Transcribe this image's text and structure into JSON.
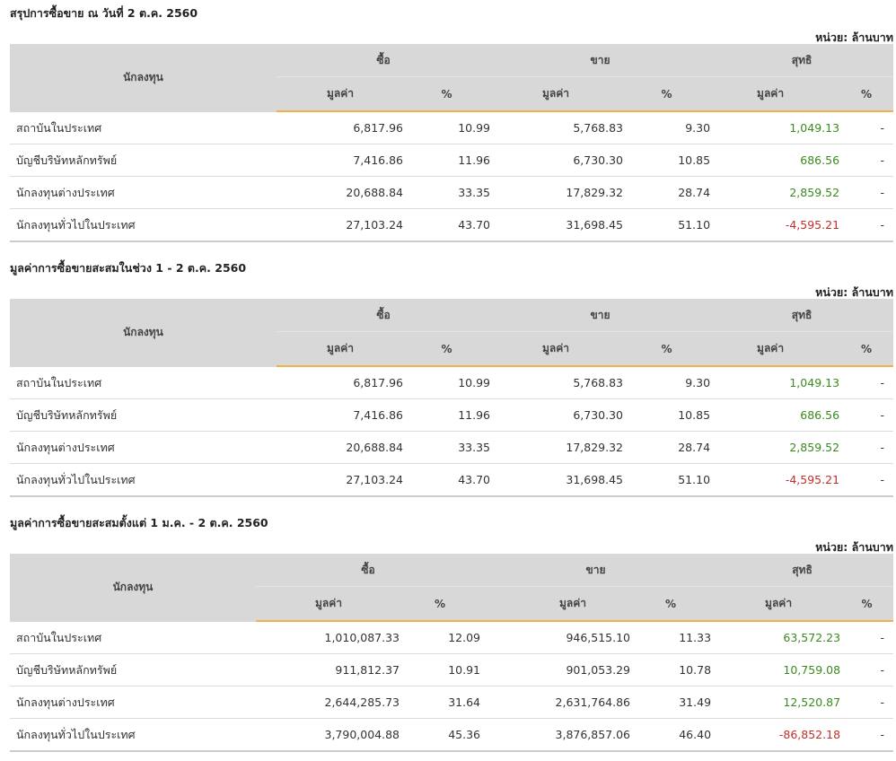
{
  "headers": {
    "investor": "นักลงทุน",
    "buy": "ซื้อ",
    "sell": "ขาย",
    "net": "สุทธิ",
    "value": "มูลค่า",
    "percent": "%"
  },
  "unit_label": "หน่วย: ล้านบาท",
  "sections": [
    {
      "title": "สรุปการซื้อขาย ณ วันที่ 2 ต.ค. 2560",
      "rows": [
        {
          "name": "สถาบันในประเทศ",
          "buy_value": "6,817.96",
          "buy_pct": "10.99",
          "sell_value": "5,768.83",
          "sell_pct": "9.30",
          "net_value": "1,049.13",
          "net_pct": "-"
        },
        {
          "name": "บัญชีบริษัทหลักทรัพย์",
          "buy_value": "7,416.86",
          "buy_pct": "11.96",
          "sell_value": "6,730.30",
          "sell_pct": "10.85",
          "net_value": "686.56",
          "net_pct": "-"
        },
        {
          "name": "นักลงทุนต่างประเทศ",
          "buy_value": "20,688.84",
          "buy_pct": "33.35",
          "sell_value": "17,829.32",
          "sell_pct": "28.74",
          "net_value": "2,859.52",
          "net_pct": "-"
        },
        {
          "name": "นักลงทุนทั่วไปในประเทศ",
          "buy_value": "27,103.24",
          "buy_pct": "43.70",
          "sell_value": "31,698.45",
          "sell_pct": "51.10",
          "net_value": "-4,595.21",
          "net_pct": "-"
        }
      ]
    },
    {
      "title": "มูลค่าการซื้อขายสะสมในช่วง 1 - 2 ต.ค. 2560",
      "rows": [
        {
          "name": "สถาบันในประเทศ",
          "buy_value": "6,817.96",
          "buy_pct": "10.99",
          "sell_value": "5,768.83",
          "sell_pct": "9.30",
          "net_value": "1,049.13",
          "net_pct": "-"
        },
        {
          "name": "บัญชีบริษัทหลักทรัพย์",
          "buy_value": "7,416.86",
          "buy_pct": "11.96",
          "sell_value": "6,730.30",
          "sell_pct": "10.85",
          "net_value": "686.56",
          "net_pct": "-"
        },
        {
          "name": "นักลงทุนต่างประเทศ",
          "buy_value": "20,688.84",
          "buy_pct": "33.35",
          "sell_value": "17,829.32",
          "sell_pct": "28.74",
          "net_value": "2,859.52",
          "net_pct": "-"
        },
        {
          "name": "นักลงทุนทั่วไปในประเทศ",
          "buy_value": "27,103.24",
          "buy_pct": "43.70",
          "sell_value": "31,698.45",
          "sell_pct": "51.10",
          "net_value": "-4,595.21",
          "net_pct": "-"
        }
      ]
    },
    {
      "title": "มูลค่าการซื้อขายสะสมตั้งแต่ 1 ม.ค. - 2 ต.ค. 2560",
      "rows": [
        {
          "name": "สถาบันในประเทศ",
          "buy_value": "1,010,087.33",
          "buy_pct": "12.09",
          "sell_value": "946,515.10",
          "sell_pct": "11.33",
          "net_value": "63,572.23",
          "net_pct": "-"
        },
        {
          "name": "บัญชีบริษัทหลักทรัพย์",
          "buy_value": "911,812.37",
          "buy_pct": "10.91",
          "sell_value": "901,053.29",
          "sell_pct": "10.78",
          "net_value": "10,759.08",
          "net_pct": "-"
        },
        {
          "name": "นักลงทุนต่างประเทศ",
          "buy_value": "2,644,285.73",
          "buy_pct": "31.64",
          "sell_value": "2,631,764.86",
          "sell_pct": "31.49",
          "net_value": "12,520.87",
          "net_pct": "-"
        },
        {
          "name": "นักลงทุนทั่วไปในประเทศ",
          "buy_value": "3,790,004.88",
          "buy_pct": "45.36",
          "sell_value": "3,876,857.06",
          "sell_pct": "46.40",
          "net_value": "-86,852.18",
          "net_pct": "-"
        }
      ]
    }
  ],
  "colors": {
    "header_bg": "#d8d8d8",
    "accent_underline": "#efb24a",
    "positive": "#3a8a1e",
    "negative": "#c0302b"
  }
}
